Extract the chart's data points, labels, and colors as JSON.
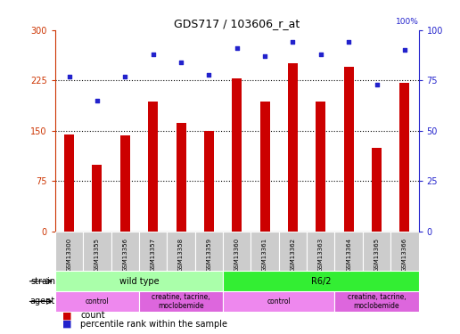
{
  "title": "GDS717 / 103606_r_at",
  "samples": [
    "GSM13300",
    "GSM13355",
    "GSM13356",
    "GSM13357",
    "GSM13358",
    "GSM13359",
    "GSM13360",
    "GSM13361",
    "GSM13362",
    "GSM13363",
    "GSM13364",
    "GSM13365",
    "GSM13366"
  ],
  "counts": [
    145,
    100,
    143,
    193,
    162,
    150,
    228,
    193,
    250,
    193,
    245,
    125,
    222
  ],
  "percentiles": [
    77,
    65,
    77,
    88,
    84,
    78,
    91,
    87,
    94,
    88,
    94,
    73,
    90
  ],
  "ylim_left": [
    0,
    300
  ],
  "ylim_right": [
    0,
    100
  ],
  "yticks_left": [
    0,
    75,
    150,
    225,
    300
  ],
  "yticks_right": [
    0,
    25,
    50,
    75,
    100
  ],
  "bar_color": "#cc0000",
  "dot_color": "#2222cc",
  "strain_groups": [
    {
      "label": "wild type",
      "start": 0,
      "end": 6,
      "color": "#aaffaa"
    },
    {
      "label": "R6/2",
      "start": 6,
      "end": 13,
      "color": "#33ee33"
    }
  ],
  "agent_groups": [
    {
      "label": "control",
      "start": 0,
      "end": 3,
      "color": "#ee88ee"
    },
    {
      "label": "creatine, tacrine,\nmoclobemide",
      "start": 3,
      "end": 6,
      "color": "#dd66dd"
    },
    {
      "label": "control",
      "start": 6,
      "end": 10,
      "color": "#ee88ee"
    },
    {
      "label": "creatine, tacrine,\nmoclobemide",
      "start": 10,
      "end": 13,
      "color": "#dd66dd"
    }
  ],
  "legend_count_color": "#cc0000",
  "legend_pct_color": "#2222cc",
  "left_axis_color": "#cc3300",
  "right_axis_color": "#2222cc",
  "grid_dotted_vals": [
    75,
    150,
    225
  ],
  "bar_width": 0.35
}
